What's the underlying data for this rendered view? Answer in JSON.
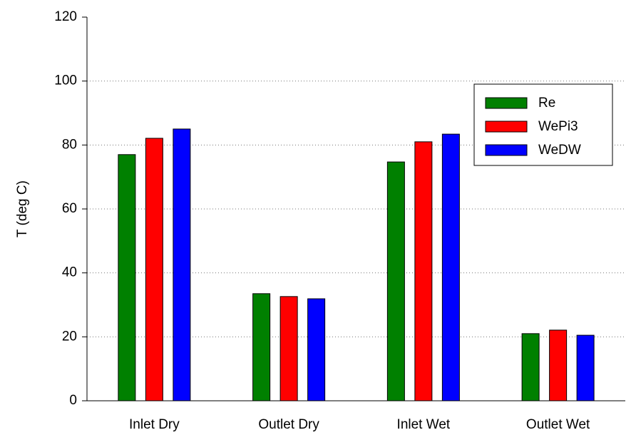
{
  "chart_data": {
    "type": "bar",
    "ylabel": "T (deg C)",
    "categories": [
      "Inlet Dry",
      "Outlet Dry",
      "Inlet Wet",
      "Outlet Wet"
    ],
    "series": [
      {
        "name": "Re",
        "color": "#008000",
        "values": [
          77.0,
          33.5,
          74.7,
          21.0
        ]
      },
      {
        "name": "WePi3",
        "color": "#ff0000",
        "values": [
          82.1,
          32.6,
          81.0,
          22.1
        ]
      },
      {
        "name": "WeDW",
        "color": "#0000ff",
        "values": [
          85.0,
          31.9,
          83.4,
          20.5
        ]
      }
    ],
    "ylim": [
      0,
      120
    ],
    "yticks": [
      0,
      20,
      40,
      60,
      80,
      100,
      120
    ],
    "grid": true,
    "legend": "upper right"
  }
}
